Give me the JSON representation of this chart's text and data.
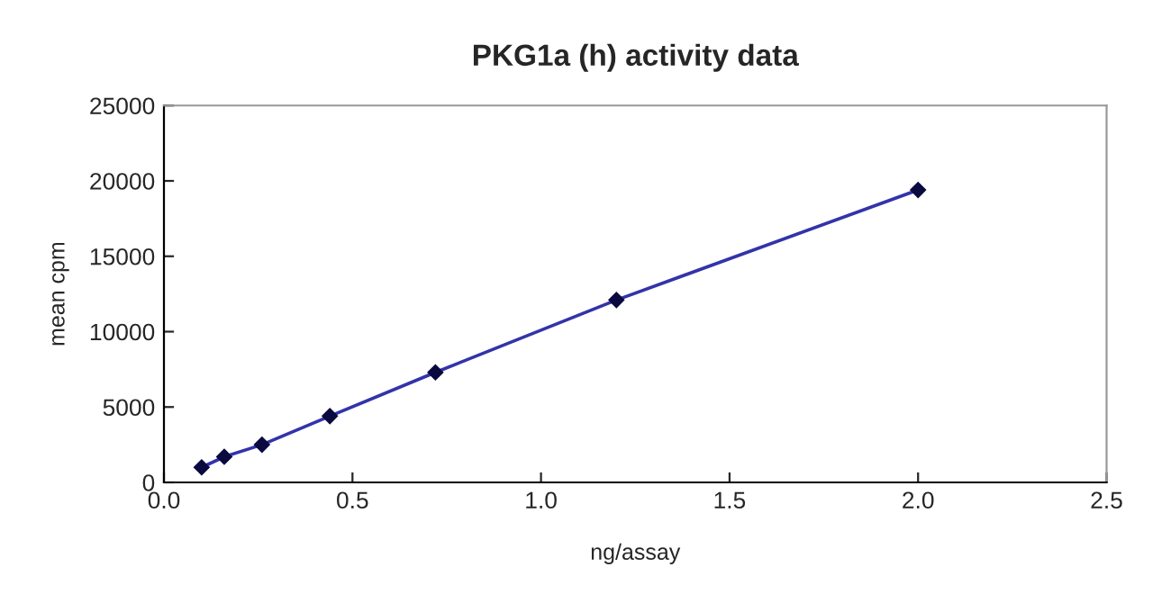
{
  "chart_data": {
    "type": "line",
    "title": "PKG1a (h) activity data",
    "xlabel": "ng/assay",
    "ylabel": "mean cpm",
    "x": [
      0.1,
      0.16,
      0.26,
      0.44,
      0.72,
      1.2,
      2.0
    ],
    "series": [
      {
        "color": "#3333aa",
        "values": [
          1000,
          1700,
          2500,
          4400,
          7300,
          12100,
          19400
        ]
      }
    ],
    "marker": "diamond",
    "line_style": "solid",
    "xlim": [
      0,
      2.5
    ],
    "xticks": [
      {
        "value": 0,
        "label": "0.0"
      },
      0.5,
      {
        "value": 1,
        "label": "1.0"
      },
      1.5,
      {
        "value": 2,
        "label": "2.0"
      },
      2.5
    ],
    "ylim": [
      0,
      25000
    ],
    "yticks": [
      0,
      5000,
      10000,
      15000,
      20000,
      25000
    ],
    "grid": false,
    "legend": false
  }
}
